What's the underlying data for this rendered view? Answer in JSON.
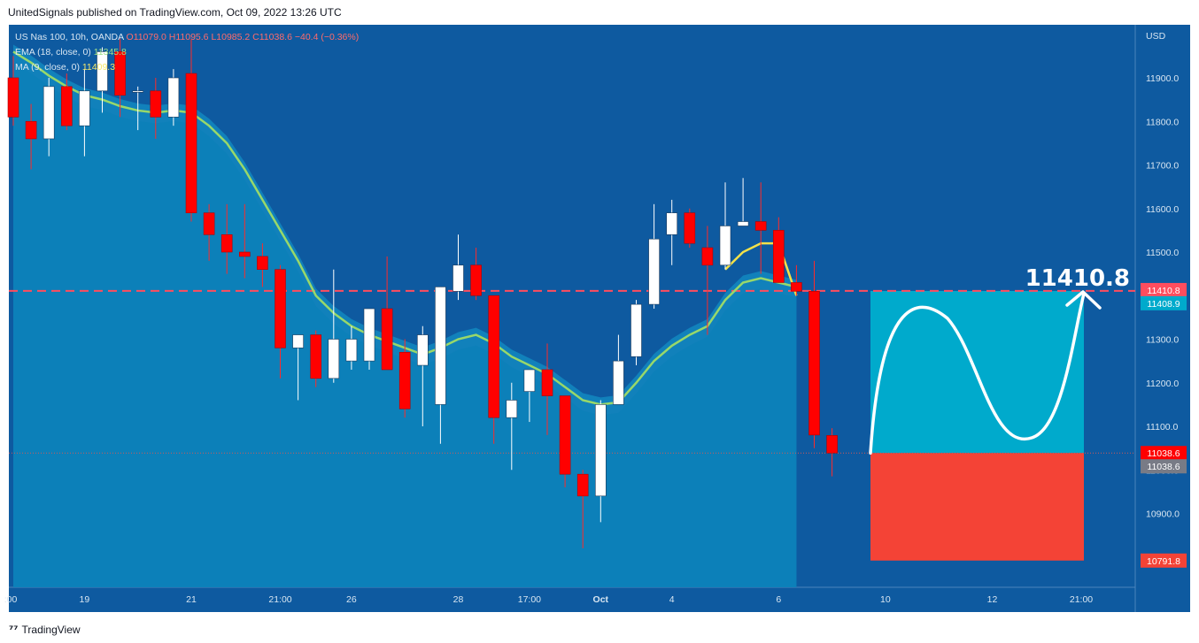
{
  "header": {
    "publisher_line": "UnitedSignals published on TradingView.com, Oct 09, 2022 13:26 UTC"
  },
  "footer": {
    "brand": "TradingView",
    "logo_icon": "tradingview-logo-icon"
  },
  "legend": {
    "symbol": "US Nas 100, 10h, OANDA",
    "open": "O11079.0",
    "high": "H11095.6",
    "low": "L10985.2",
    "close": "C11038.6",
    "change": "−40.4 (−0.36%)",
    "ema_label": "EMA (18, close, 0)",
    "ema_value": "11345.8",
    "ma_label": "MA (9, close, 0)",
    "ma_value": "11409.3"
  },
  "colors": {
    "background": "#0e5aa0",
    "band": "#1288c0",
    "up_candle": "#ffffff",
    "down_candle": "#ff0000",
    "ema_line": "#98d86a",
    "ma_line": "#f2e14a",
    "target_zone": "#00aacc",
    "stop_zone": "#f44336",
    "target_line": "#ff4d5e"
  },
  "chart_data": {
    "type": "candlestick",
    "currency": "USD",
    "y_ticks": [
      11900.0,
      11800.0,
      11700.0,
      11600.0,
      11500.0,
      11400.0,
      11300.0,
      11200.0,
      11100.0,
      11000.0,
      10900.0
    ],
    "x_ticks": [
      {
        "label": ":00",
        "i": 0
      },
      {
        "label": "19",
        "i": 4
      },
      {
        "label": "21",
        "i": 10
      },
      {
        "label": "21:00",
        "i": 15
      },
      {
        "label": "26",
        "i": 19
      },
      {
        "label": "28",
        "i": 25
      },
      {
        "label": "17:00",
        "i": 29
      },
      {
        "label": "Oct",
        "i": 33
      },
      {
        "label": "4",
        "i": 37
      },
      {
        "label": "6",
        "i": 43
      },
      {
        "label": "10",
        "i": 49
      },
      {
        "label": "12",
        "i": 55
      },
      {
        "label": "21:00",
        "i": 60
      }
    ],
    "price_labels": [
      {
        "value": 11410.8,
        "text": "11410.8",
        "color": "#ff4d5e"
      },
      {
        "value": 11408.9,
        "text": "11408.9",
        "color": "#00aacc"
      },
      {
        "value": 11038.6,
        "text": "11038.6",
        "color": "#ff0000"
      },
      {
        "value": 11038.6,
        "text": "11038.6",
        "color": "#787b86",
        "offset": 1
      },
      {
        "value": 10791.8,
        "text": "10791.8",
        "color": "#f44336"
      }
    ],
    "target_annotation": "11410.8",
    "target_price": 11410.8,
    "entry_price": 11038.6,
    "stop_price": 10791.8,
    "candles": [
      {
        "o": 11900,
        "h": 11950,
        "l": 11790,
        "c": 11810
      },
      {
        "o": 11800,
        "h": 11840,
        "l": 11690,
        "c": 11760
      },
      {
        "o": 11760,
        "h": 11900,
        "l": 11720,
        "c": 11880
      },
      {
        "o": 11880,
        "h": 11910,
        "l": 11780,
        "c": 11790
      },
      {
        "o": 11790,
        "h": 11920,
        "l": 11720,
        "c": 11870
      },
      {
        "o": 11870,
        "h": 11970,
        "l": 11820,
        "c": 11960
      },
      {
        "o": 11960,
        "h": 11990,
        "l": 11810,
        "c": 11860
      },
      {
        "o": 11870,
        "h": 11880,
        "l": 11780,
        "c": 11870
      },
      {
        "o": 11870,
        "h": 11900,
        "l": 11760,
        "c": 11810
      },
      {
        "o": 11810,
        "h": 11920,
        "l": 11790,
        "c": 11900
      },
      {
        "o": 11910,
        "h": 11990,
        "l": 11570,
        "c": 11590
      },
      {
        "o": 11590,
        "h": 11610,
        "l": 11480,
        "c": 11540
      },
      {
        "o": 11540,
        "h": 11610,
        "l": 11450,
        "c": 11500
      },
      {
        "o": 11500,
        "h": 11610,
        "l": 11440,
        "c": 11490
      },
      {
        "o": 11490,
        "h": 11520,
        "l": 11420,
        "c": 11460
      },
      {
        "o": 11460,
        "h": 11470,
        "l": 11210,
        "c": 11280
      },
      {
        "o": 11280,
        "h": 11310,
        "l": 11160,
        "c": 11310
      },
      {
        "o": 11310,
        "h": 11320,
        "l": 11190,
        "c": 11210
      },
      {
        "o": 11210,
        "h": 11460,
        "l": 11200,
        "c": 11300
      },
      {
        "o": 11250,
        "h": 11330,
        "l": 11230,
        "c": 11300
      },
      {
        "o": 11250,
        "h": 11370,
        "l": 11230,
        "c": 11370
      },
      {
        "o": 11370,
        "h": 11490,
        "l": 11240,
        "c": 11230
      },
      {
        "o": 11270,
        "h": 11300,
        "l": 11120,
        "c": 11140
      },
      {
        "o": 11240,
        "h": 11330,
        "l": 11100,
        "c": 11310
      },
      {
        "o": 11150,
        "h": 11420,
        "l": 11060,
        "c": 11420
      },
      {
        "o": 11410,
        "h": 11540,
        "l": 11390,
        "c": 11470
      },
      {
        "o": 11470,
        "h": 11510,
        "l": 11390,
        "c": 11400
      },
      {
        "o": 11400,
        "h": 11400,
        "l": 11060,
        "c": 11120
      },
      {
        "o": 11120,
        "h": 11200,
        "l": 11000,
        "c": 11160
      },
      {
        "o": 11180,
        "h": 11220,
        "l": 11110,
        "c": 11230
      },
      {
        "o": 11230,
        "h": 11290,
        "l": 11080,
        "c": 11170
      },
      {
        "o": 11170,
        "h": 11170,
        "l": 10960,
        "c": 10990
      },
      {
        "o": 10990,
        "h": 11000,
        "l": 10820,
        "c": 10940
      },
      {
        "o": 10940,
        "h": 11160,
        "l": 10880,
        "c": 11150
      },
      {
        "o": 11150,
        "h": 11310,
        "l": 11150,
        "c": 11250
      },
      {
        "o": 11260,
        "h": 11390,
        "l": 11240,
        "c": 11380
      },
      {
        "o": 11380,
        "h": 11610,
        "l": 11370,
        "c": 11530
      },
      {
        "o": 11540,
        "h": 11620,
        "l": 11470,
        "c": 11590
      },
      {
        "o": 11590,
        "h": 11600,
        "l": 11510,
        "c": 11520
      },
      {
        "o": 11510,
        "h": 11560,
        "l": 11310,
        "c": 11470
      },
      {
        "o": 11470,
        "h": 11660,
        "l": 11460,
        "c": 11560
      },
      {
        "o": 11560,
        "h": 11670,
        "l": 11560,
        "c": 11570
      },
      {
        "o": 11570,
        "h": 11660,
        "l": 11450,
        "c": 11550
      },
      {
        "o": 11550,
        "h": 11580,
        "l": 11430,
        "c": 11430
      },
      {
        "o": 11430,
        "h": 11470,
        "l": 11400,
        "c": 11410
      },
      {
        "o": 11410,
        "h": 11480,
        "l": 11050,
        "c": 11080
      },
      {
        "o": 11079.0,
        "h": 11095.6,
        "l": 10985.2,
        "c": 11038.6
      }
    ],
    "ema": [
      11960,
      11935,
      11905,
      11880,
      11860,
      11850,
      11835,
      11825,
      11820,
      11825,
      11820,
      11790,
      11750,
      11690,
      11620,
      11550,
      11480,
      11400,
      11360,
      11330,
      11310,
      11295,
      11280,
      11265,
      11280,
      11300,
      11310,
      11290,
      11260,
      11240,
      11220,
      11190,
      11160,
      11150,
      11155,
      11200,
      11250,
      11285,
      11310,
      11330,
      11390,
      11430,
      11440,
      11430,
      11420
    ],
    "ma": [
      11950,
      11930,
      11905,
      11885,
      11870,
      11865,
      11860,
      11865,
      11870,
      11868,
      11860,
      11830,
      11780,
      11700,
      11620,
      11530,
      11440,
      11360,
      11330,
      11310,
      11290,
      11280,
      11270,
      11265,
      11280,
      11300,
      11310,
      11280,
      11260,
      11235,
      11210,
      11190,
      11170,
      11160,
      11160,
      11200,
      11250,
      11285,
      11310,
      11380,
      11460,
      11500,
      11520,
      11520,
      11400
    ]
  }
}
